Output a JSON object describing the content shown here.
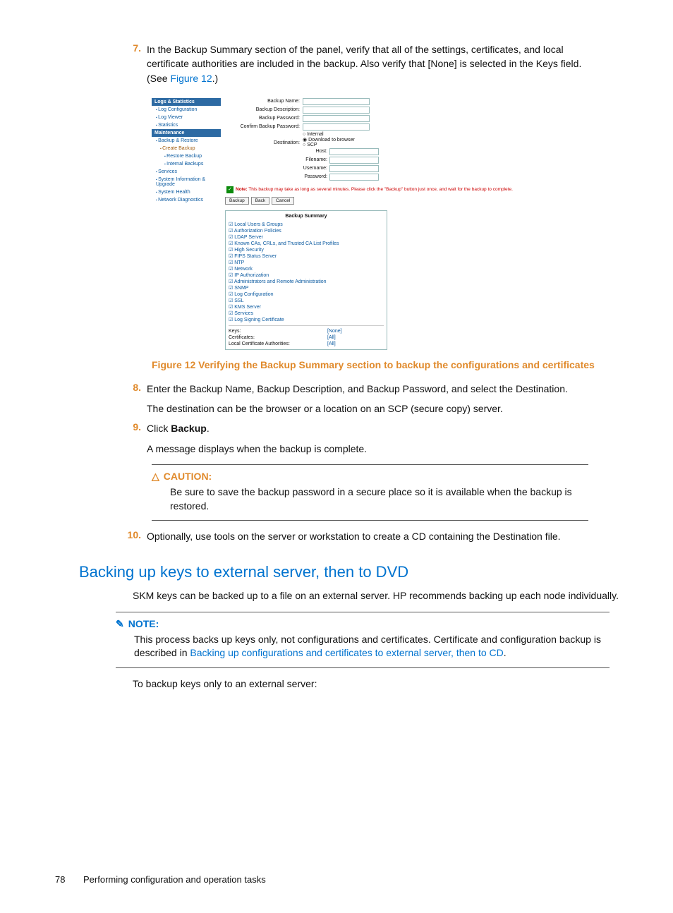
{
  "steps": {
    "s7": {
      "num": "7.",
      "text_a": "In the Backup Summary section of the panel, verify that all of the settings, certificates, and local certificate authorities are included in the backup. Also verify that [None] is selected in the Keys field. (See ",
      "link": "Figure 12",
      "text_b": ".)"
    },
    "s8": {
      "num": "8.",
      "text": "Enter the Backup Name, Backup Description, and Backup Password, and select the Destination.",
      "sub": "The destination can be the browser or a location on an SCP (secure copy) server."
    },
    "s9": {
      "num": "9.",
      "text_a": "Click ",
      "bold": "Backup",
      "text_b": ".",
      "sub": "A message displays when the backup is complete."
    },
    "s10": {
      "num": "10.",
      "text": "Optionally, use tools on the server or workstation to create a CD containing the Destination file."
    }
  },
  "figure": {
    "sidebar": {
      "hdr1": "Logs & Statistics",
      "items1": [
        "Log Configuration",
        "Log Viewer",
        "Statistics"
      ],
      "hdr2": "Maintenance",
      "items2_parent": "Backup & Restore",
      "items2_children": [
        "Create Backup",
        "Restore Backup",
        "Internal Backups"
      ],
      "items2_rest": [
        "Services",
        "System Information & Upgrade",
        "System Health",
        "Network Diagnostics"
      ]
    },
    "form": {
      "labels": [
        "Backup Name:",
        "Backup Description:",
        "Backup Password:",
        "Confirm Backup Password:"
      ],
      "dest_label": "Destination:",
      "dest_opts": [
        "Internal",
        "Download to browser",
        "SCP"
      ],
      "scp_fields": [
        "Host:",
        "Filename:",
        "Username:",
        "Password:"
      ],
      "note_label": "Note:",
      "note_text": " This backup may take as long as several minutes. Please click the \"Backup\" button just once, and wait for the backup to complete.",
      "buttons": [
        "Backup",
        "Back",
        "Cancel"
      ]
    },
    "summary": {
      "title": "Backup Summary",
      "items": [
        "Local Users & Groups",
        "Authorization Policies",
        "LDAP Server",
        "Known CAs, CRLs, and Trusted CA List Profiles",
        "High Security",
        "FIPS Status Server",
        "NTP",
        "Network",
        "IP Authorization",
        "Administrators and Remote Administration",
        "SNMP",
        "Log Configuration",
        "SSL",
        "KMS Server",
        "Services",
        "Log Signing Certificate"
      ],
      "kv": [
        {
          "k": "Keys:",
          "v": "[None]"
        },
        {
          "k": "Certificates:",
          "v": "[All]"
        },
        {
          "k": "Local Certificate Authorities:",
          "v": "[All]"
        }
      ]
    },
    "caption": "Figure 12 Verifying the Backup Summary section to backup the configurations and certificates"
  },
  "caution": {
    "head": "CAUTION:",
    "text": "Be sure to save the backup password in a secure place so it is available when the backup is restored."
  },
  "section_h": "Backing up keys to external server, then to DVD",
  "section_p1": "SKM keys can be backed up to a file on an external server. HP recommends backing up each node individually.",
  "note": {
    "head": "NOTE:",
    "text_a": "This process backs up keys only, not configurations and certificates. Certificate and configuration backup is described in ",
    "link": "Backing up configurations and certificates to external server, then to CD",
    "text_b": "."
  },
  "section_p2": "To backup keys only to an external server:",
  "footer": {
    "page": "78",
    "chapter": "Performing configuration and operation tasks"
  }
}
